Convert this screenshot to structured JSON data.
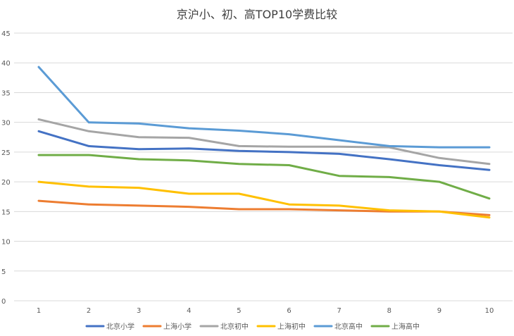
{
  "chart_data": {
    "type": "line",
    "title": "京沪小、初、高TOP10学费比较",
    "xlabel": "",
    "ylabel": "",
    "categories": [
      "1",
      "2",
      "3",
      "4",
      "5",
      "6",
      "7",
      "8",
      "9",
      "10"
    ],
    "yticks": [
      "0",
      "5",
      "10",
      "15",
      "20",
      "25",
      "30",
      "35",
      "40",
      "45"
    ],
    "ylim": [
      0,
      45
    ],
    "grid": true,
    "legend_position": "bottom",
    "series": [
      {
        "name": "北京小学",
        "color": "#4472C4",
        "values": [
          28.5,
          26.0,
          25.5,
          25.6,
          25.2,
          25.0,
          24.7,
          23.8,
          22.8,
          22.0
        ]
      },
      {
        "name": "上海小学",
        "color": "#ED7D31",
        "values": [
          16.8,
          16.2,
          16.0,
          15.8,
          15.4,
          15.4,
          15.2,
          15.0,
          15.0,
          14.4
        ]
      },
      {
        "name": "北京初中",
        "color": "#A5A5A5",
        "values": [
          30.5,
          28.5,
          27.5,
          27.4,
          26.0,
          25.9,
          25.9,
          25.8,
          24.0,
          23.0
        ]
      },
      {
        "name": "上海初中",
        "color": "#FFC000",
        "values": [
          20.0,
          19.2,
          19.0,
          18.0,
          18.0,
          16.2,
          16.0,
          15.2,
          15.0,
          14.0
        ]
      },
      {
        "name": "北京高中",
        "color": "#5B9BD5",
        "values": [
          39.3,
          30.0,
          29.8,
          29.0,
          28.6,
          28.0,
          27.0,
          26.0,
          25.8,
          25.8
        ]
      },
      {
        "name": "上海高中",
        "color": "#70AD47",
        "values": [
          24.5,
          24.5,
          23.8,
          23.6,
          23.0,
          22.8,
          21.0,
          20.8,
          20.0,
          17.2
        ]
      }
    ]
  }
}
